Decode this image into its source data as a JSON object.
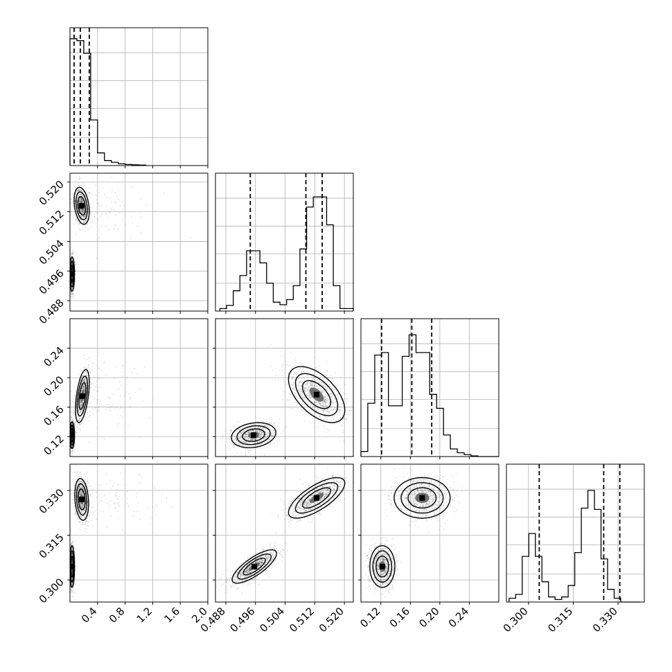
{
  "chart_data": {
    "type": "corner",
    "grid": true,
    "parameters": [
      {
        "range": [
          0.0,
          2.0
        ],
        "ticks": [
          {
            "v": 0.4,
            "t": "0.4"
          },
          {
            "v": 0.8,
            "t": "0.8"
          },
          {
            "v": 1.2,
            "t": "1.2"
          },
          {
            "v": 1.6,
            "t": "1.6"
          },
          {
            "v": 2.0,
            "t": "2.0"
          }
        ],
        "quantiles": [
          0.06,
          0.15,
          0.28
        ]
      },
      {
        "range": [
          0.4852,
          0.5224
        ],
        "ticks": [
          {
            "v": 0.488,
            "t": "0.488"
          },
          {
            "v": 0.496,
            "t": "0.496"
          },
          {
            "v": 0.504,
            "t": "0.504"
          },
          {
            "v": 0.512,
            "t": "0.512"
          },
          {
            "v": 0.52,
            "t": "0.520"
          }
        ],
        "quantiles": [
          0.4946,
          0.5096,
          0.514
        ]
      },
      {
        "range": [
          0.093,
          0.28
        ],
        "ticks": [
          {
            "v": 0.12,
            "t": "0.12"
          },
          {
            "v": 0.16,
            "t": "0.16"
          },
          {
            "v": 0.2,
            "t": "0.20"
          },
          {
            "v": 0.24,
            "t": "0.24"
          }
        ],
        "quantiles": [
          0.121,
          0.162,
          0.189
        ]
      },
      {
        "range": [
          0.2926,
          0.3388
        ],
        "ticks": [
          {
            "v": 0.3,
            "t": "0.300"
          },
          {
            "v": 0.315,
            "t": "0.315"
          },
          {
            "v": 0.33,
            "t": "0.330"
          }
        ],
        "quantiles": [
          0.3036,
          0.3252,
          0.3306
        ]
      }
    ],
    "histograms": [
      {
        "edges": [
          0.0,
          0.1,
          0.2,
          0.3,
          0.4,
          0.5,
          0.6,
          0.7,
          0.8,
          0.9,
          1.0,
          1.1
        ],
        "counts": [
          1.0,
          0.985,
          0.885,
          0.36,
          0.1,
          0.04,
          0.026,
          0.014,
          0.009,
          0.006,
          0.004
        ]
      },
      {
        "edges": [
          0.4864,
          0.4882,
          0.49,
          0.4918,
          0.4936,
          0.4954,
          0.4972,
          0.499,
          0.5008,
          0.5026,
          0.5044,
          0.5062,
          0.508,
          0.5098,
          0.5116,
          0.5134,
          0.5152,
          0.517,
          0.5188,
          0.5206,
          0.5224
        ],
        "counts": [
          0.02,
          0.045,
          0.16,
          0.28,
          0.475,
          0.475,
          0.38,
          0.22,
          0.07,
          0.05,
          0.09,
          0.2,
          0.49,
          0.82,
          0.9,
          0.9,
          0.68,
          0.2,
          0.02,
          0.02
        ]
      },
      {
        "edges": [
          0.093,
          0.1023,
          0.1117,
          0.121,
          0.1303,
          0.1397,
          0.149,
          0.1583,
          0.1677,
          0.177,
          0.1863,
          0.1957,
          0.205,
          0.2143,
          0.2237,
          0.233,
          0.2423,
          0.2517,
          0.261,
          0.2703,
          0.2797
        ],
        "counts": [
          0.04,
          0.42,
          0.8,
          0.82,
          0.4,
          0.4,
          0.79,
          0.96,
          0.82,
          0.82,
          0.49,
          0.38,
          0.17,
          0.06,
          0.03,
          0.015,
          0.005,
          0.0,
          0.0,
          0.0
        ]
      },
      {
        "edges": [
          0.2935,
          0.2957,
          0.2979,
          0.3001,
          0.3023,
          0.3045,
          0.3067,
          0.3089,
          0.3111,
          0.3133,
          0.3155,
          0.3177,
          0.3199,
          0.3221,
          0.3243,
          0.3265,
          0.3287,
          0.3309,
          0.3331,
          0.3353,
          0.3375
        ],
        "counts": [
          0.03,
          0.06,
          0.36,
          0.54,
          0.36,
          0.16,
          0.04,
          0.02,
          0.04,
          0.13,
          0.39,
          0.74,
          0.88,
          0.73,
          0.34,
          0.1,
          0.03,
          0.0,
          0.0,
          0.0
        ]
      }
    ],
    "pairs": [
      {
        "row": 1,
        "col": 0,
        "clusters": [
          {
            "center": [
              0.17,
              0.5136
            ],
            "sd": [
              0.055,
              0.0025
            ],
            "corr": -0.3,
            "weight": 0.5,
            "tail_x": 0.45
          },
          {
            "center": [
              0.03,
              0.4952
            ],
            "sd": [
              0.018,
              0.0023
            ],
            "corr": 0.0,
            "weight": 0.5
          }
        ]
      },
      {
        "row": 2,
        "col": 0,
        "clusters": [
          {
            "center": [
              0.18,
              0.175
            ],
            "sd": [
              0.05,
              0.018
            ],
            "corr": 0.5,
            "weight": 0.5,
            "tail_x": 0.45
          },
          {
            "center": [
              0.03,
              0.122
            ],
            "sd": [
              0.018,
              0.009
            ],
            "corr": 0.0,
            "weight": 0.5
          }
        ]
      },
      {
        "row": 2,
        "col": 1,
        "clusters": [
          {
            "center": [
              0.5125,
              0.177
            ],
            "sd": [
              0.0038,
              0.019
            ],
            "corr": -0.55,
            "weight": 0.5
          },
          {
            "center": [
              0.4955,
              0.122
            ],
            "sd": [
              0.003,
              0.0085
            ],
            "corr": 0.2,
            "weight": 0.5
          }
        ]
      },
      {
        "row": 3,
        "col": 0,
        "clusters": [
          {
            "center": [
              0.17,
              0.327
            ],
            "sd": [
              0.05,
              0.0035
            ],
            "corr": -0.2,
            "weight": 0.5,
            "tail_x": 0.45
          },
          {
            "center": [
              0.03,
              0.3045
            ],
            "sd": [
              0.018,
              0.0035
            ],
            "corr": 0.0,
            "weight": 0.5
          }
        ]
      },
      {
        "row": 3,
        "col": 1,
        "clusters": [
          {
            "center": [
              0.5125,
              0.3275
            ],
            "sd": [
              0.0038,
              0.0034
            ],
            "corr": 0.72,
            "weight": 0.5
          },
          {
            "center": [
              0.4957,
              0.3045
            ],
            "sd": [
              0.003,
              0.0028
            ],
            "corr": 0.78,
            "weight": 0.5
          }
        ]
      },
      {
        "row": 3,
        "col": 2,
        "clusters": [
          {
            "center": [
              0.176,
              0.3275
            ],
            "sd": [
              0.019,
              0.0034
            ],
            "corr": 0.0,
            "weight": 0.5
          },
          {
            "center": [
              0.122,
              0.3045
            ],
            "sd": [
              0.0085,
              0.0035
            ],
            "corr": 0.0,
            "weight": 0.5
          }
        ]
      }
    ]
  }
}
